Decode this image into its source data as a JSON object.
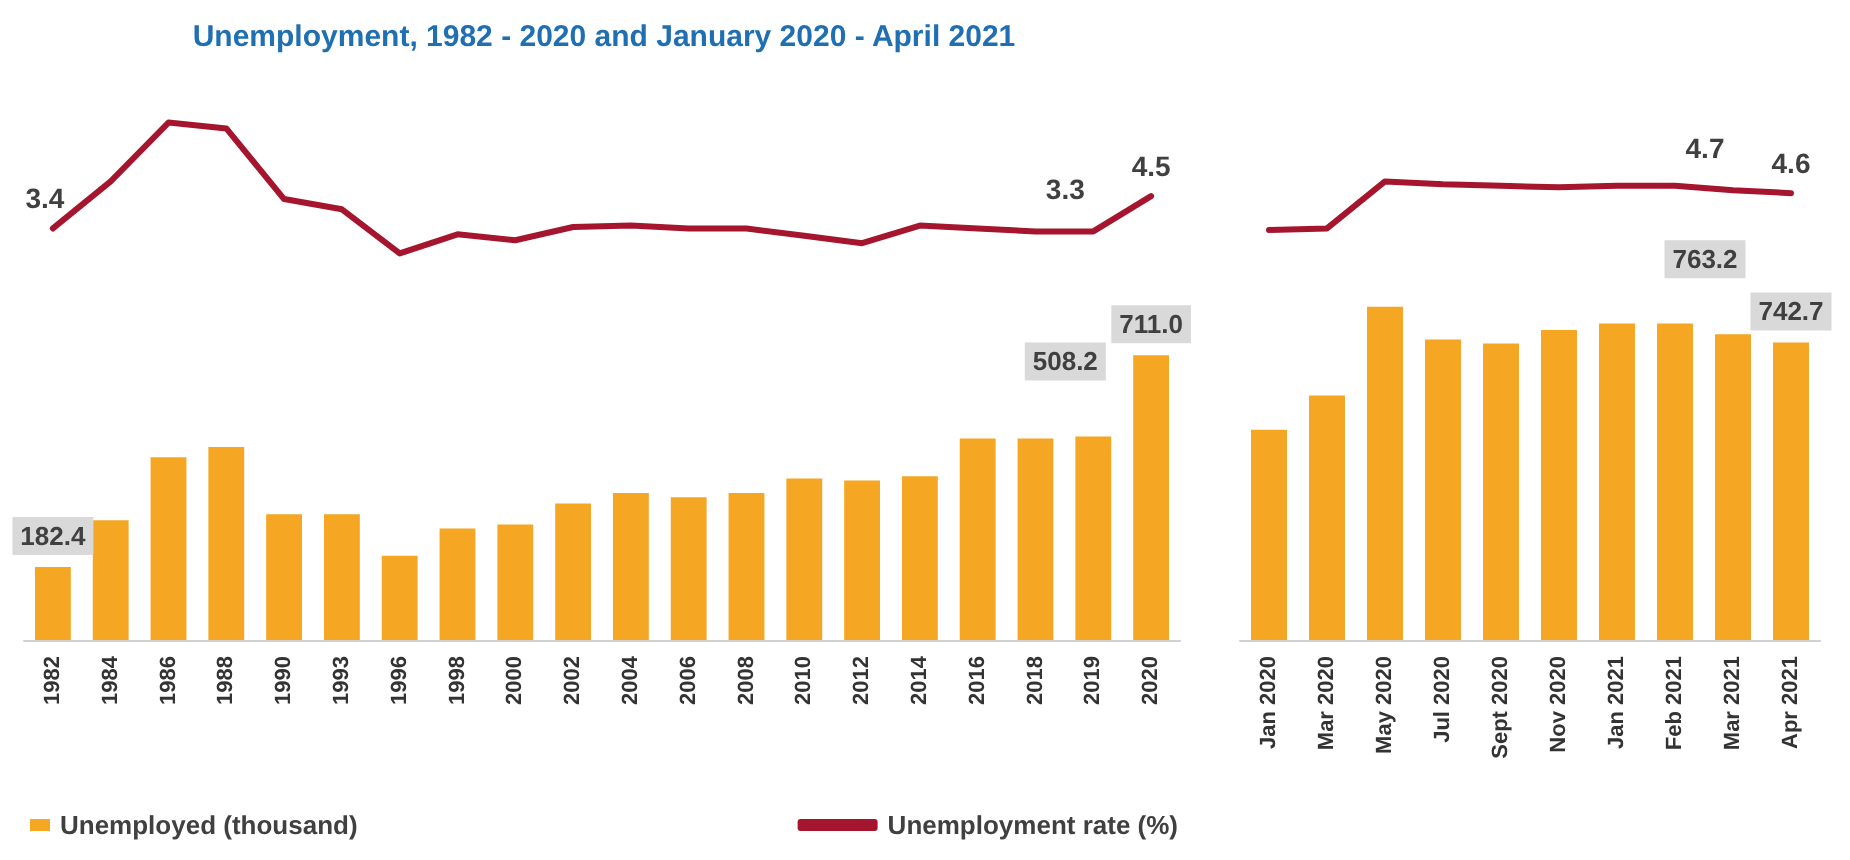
{
  "chart_data": [
    {
      "type": "bar",
      "categories": [
        "1982",
        "1984",
        "1986",
        "1988",
        "1990",
        "1993",
        "1996",
        "1998",
        "2000",
        "2002",
        "2004",
        "2006",
        "2008",
        "2010",
        "2012",
        "2014",
        "2016",
        "2018",
        "2019",
        "2020"
      ],
      "legend": "bottom left",
      "grid": false,
      "series": [
        {
          "name": "Unemployed (thousand)",
          "color": "#f5a623",
          "values": [
            182.4,
            299,
            456,
            482,
            314,
            314,
            210,
            278,
            288,
            341,
            367,
            356,
            367,
            403,
            398,
            409,
            503,
            503,
            508.2,
            711.0
          ],
          "value_labels": [
            "182.4",
            null,
            null,
            null,
            null,
            null,
            null,
            null,
            null,
            null,
            null,
            null,
            null,
            null,
            null,
            null,
            null,
            null,
            "508.2",
            "711.0"
          ]
        }
      ]
    },
    {
      "type": "line",
      "title": "Unemployment, 1982 - 2020 and January 2020 - April 2021",
      "categories": [
        null,
        null,
        null,
        null,
        null,
        null,
        null,
        null,
        null,
        null,
        null,
        null,
        null,
        null,
        null,
        null,
        null,
        null,
        null,
        null
      ],
      "tick_labels": false,
      "legend": "bottom right",
      "grid": false,
      "series": [
        {
          "name": "Unemployment rate (%)",
          "color": "#a5162e",
          "marker": "none",
          "values": [
            3.4,
            5.0,
            7.0,
            6.8,
            4.4,
            4.05,
            2.55,
            3.2,
            3.0,
            3.45,
            3.5,
            3.4,
            3.4,
            3.15,
            2.9,
            3.5,
            3.4,
            3.3,
            3.3,
            4.5
          ],
          "value_labels": [
            "3.4",
            null,
            null,
            null,
            null,
            null,
            null,
            null,
            null,
            null,
            null,
            null,
            null,
            null,
            null,
            null,
            null,
            null,
            "3.3",
            "4.5"
          ]
        }
      ]
    },
    {
      "type": "bar",
      "categories": [
        "Jan 2020",
        "Mar 2020",
        "May 2020",
        "Jul 2020",
        "Sept 2020",
        "Nov 2020",
        "Jan 2021",
        "Feb 2021",
        "Mar 2021",
        "Apr 2021"
      ],
      "grid": false,
      "series": [
        {
          "color": "#f5a623",
          "values": [
            525,
            610,
            832,
            750,
            740,
            774,
            790,
            790,
            763.2,
            742.7
          ],
          "value_labels": [
            null,
            null,
            null,
            null,
            null,
            null,
            null,
            null,
            "763.2",
            "742.7"
          ]
        }
      ]
    },
    {
      "type": "line",
      "categories": [
        null,
        null,
        null,
        null,
        null,
        null,
        null,
        null,
        null,
        null
      ],
      "tick_labels": false,
      "grid": false,
      "series": [
        {
          "color": "#a5162e",
          "marker": "none",
          "values": [
            3.35,
            3.4,
            5.0,
            4.9,
            4.85,
            4.8,
            4.85,
            4.85,
            4.7,
            4.6
          ],
          "value_labels": [
            null,
            null,
            null,
            null,
            null,
            null,
            null,
            null,
            "4.7",
            "4.6"
          ]
        }
      ]
    }
  ]
}
